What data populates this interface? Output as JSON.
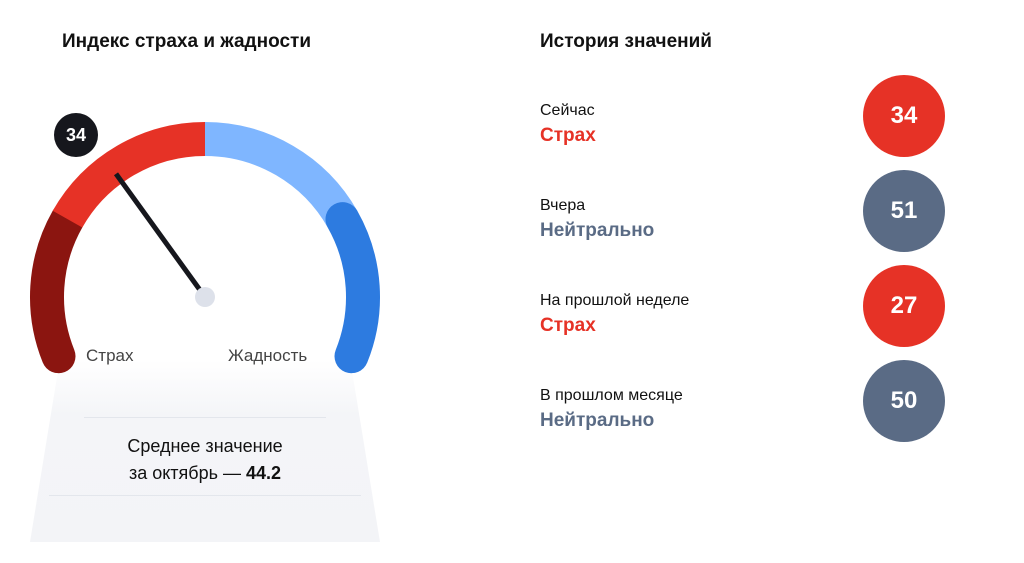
{
  "left": {
    "title": "Индекс страха и жадности",
    "value": "34",
    "scale": {
      "min": 0,
      "max": 100
    },
    "label_fear": "Страх",
    "label_greed": "Жадность",
    "segments": [
      {
        "from": 0,
        "to": 23,
        "color": "#8b1510"
      },
      {
        "from": 23,
        "to": 50,
        "color": "#e63226"
      },
      {
        "from": 50,
        "to": 77,
        "color": "#7fb6ff"
      },
      {
        "from": 77,
        "to": 100,
        "color": "#2d7be0"
      }
    ],
    "avg_line1": "Среднее значение",
    "avg_prefix": "за октябрь — ",
    "avg_value": "44.2"
  },
  "right": {
    "title": "История значений",
    "items": [
      {
        "when": "Сейчас",
        "state": "Страх",
        "value": "34",
        "color": "#e63226"
      },
      {
        "when": "Вчера",
        "state": "Нейтрально",
        "value": "51",
        "color": "#5a6b85"
      },
      {
        "when": "На прошлой неделе",
        "state": "Страх",
        "value": "27",
        "color": "#e63226"
      },
      {
        "when": "В прошлом месяце",
        "state": "Нейтрально",
        "value": "50",
        "color": "#5a6b85"
      }
    ]
  }
}
